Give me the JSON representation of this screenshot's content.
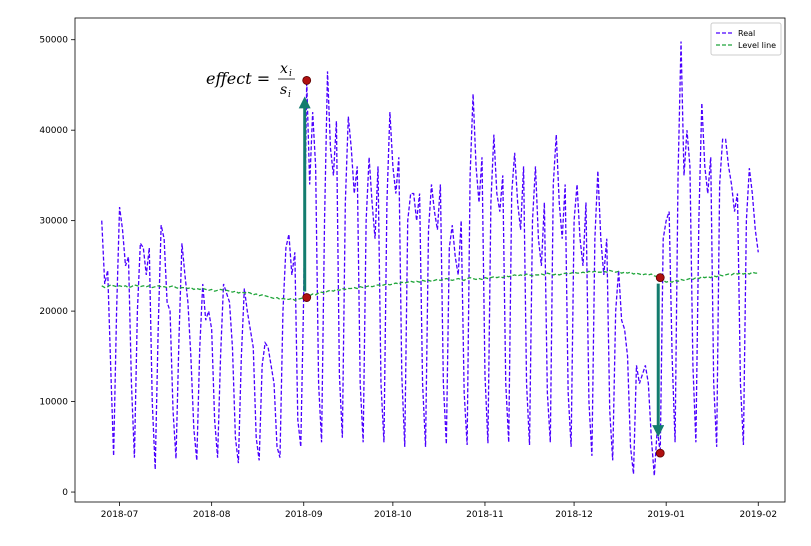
{
  "chart_data": {
    "type": "line",
    "x": [
      "2018-06-25",
      "2018-06-26",
      "2018-06-27",
      "2018-06-28",
      "2018-06-29",
      "2018-06-30",
      "2018-07-01",
      "2018-07-02",
      "2018-07-03",
      "2018-07-04",
      "2018-07-05",
      "2018-07-06",
      "2018-07-07",
      "2018-07-08",
      "2018-07-09",
      "2018-07-10",
      "2018-07-11",
      "2018-07-12",
      "2018-07-13",
      "2018-07-14",
      "2018-07-15",
      "2018-07-16",
      "2018-07-17",
      "2018-07-18",
      "2018-07-19",
      "2018-07-20",
      "2018-07-21",
      "2018-07-22",
      "2018-07-23",
      "2018-07-24",
      "2018-07-25",
      "2018-07-26",
      "2018-07-27",
      "2018-07-28",
      "2018-07-29",
      "2018-07-30",
      "2018-07-31",
      "2018-08-01",
      "2018-08-02",
      "2018-08-03",
      "2018-08-04",
      "2018-08-05",
      "2018-08-06",
      "2018-08-07",
      "2018-08-08",
      "2018-08-09",
      "2018-08-10",
      "2018-08-11",
      "2018-08-12",
      "2018-08-13",
      "2018-08-14",
      "2018-08-15",
      "2018-08-16",
      "2018-08-17",
      "2018-08-18",
      "2018-08-19",
      "2018-08-20",
      "2018-08-21",
      "2018-08-22",
      "2018-08-23",
      "2018-08-24",
      "2018-08-25",
      "2018-08-26",
      "2018-08-27",
      "2018-08-28",
      "2018-08-29",
      "2018-08-30",
      "2018-08-31",
      "2018-09-01",
      "2018-09-02",
      "2018-09-03",
      "2018-09-04",
      "2018-09-05",
      "2018-09-06",
      "2018-09-07",
      "2018-09-08",
      "2018-09-09",
      "2018-09-10",
      "2018-09-11",
      "2018-09-12",
      "2018-09-13",
      "2018-09-14",
      "2018-09-15",
      "2018-09-16",
      "2018-09-17",
      "2018-09-18",
      "2018-09-19",
      "2018-09-20",
      "2018-09-21",
      "2018-09-22",
      "2018-09-23",
      "2018-09-24",
      "2018-09-25",
      "2018-09-26",
      "2018-09-27",
      "2018-09-28",
      "2018-09-29",
      "2018-09-30",
      "2018-10-01",
      "2018-10-02",
      "2018-10-03",
      "2018-10-04",
      "2018-10-05",
      "2018-10-06",
      "2018-10-07",
      "2018-10-08",
      "2018-10-09",
      "2018-10-10",
      "2018-10-11",
      "2018-10-12",
      "2018-10-13",
      "2018-10-14",
      "2018-10-15",
      "2018-10-16",
      "2018-10-17",
      "2018-10-18",
      "2018-10-19",
      "2018-10-20",
      "2018-10-21",
      "2018-10-22",
      "2018-10-23",
      "2018-10-24",
      "2018-10-25",
      "2018-10-26",
      "2018-10-27",
      "2018-10-28",
      "2018-10-29",
      "2018-10-30",
      "2018-10-31",
      "2018-11-01",
      "2018-11-02",
      "2018-11-03",
      "2018-11-04",
      "2018-11-05",
      "2018-11-06",
      "2018-11-07",
      "2018-11-08",
      "2018-11-09",
      "2018-11-10",
      "2018-11-11",
      "2018-11-12",
      "2018-11-13",
      "2018-11-14",
      "2018-11-15",
      "2018-11-16",
      "2018-11-17",
      "2018-11-18",
      "2018-11-19",
      "2018-11-20",
      "2018-11-21",
      "2018-11-22",
      "2018-11-23",
      "2018-11-24",
      "2018-11-25",
      "2018-11-26",
      "2018-11-27",
      "2018-11-28",
      "2018-11-29",
      "2018-11-30",
      "2018-12-01",
      "2018-12-02",
      "2018-12-03",
      "2018-12-04",
      "2018-12-05",
      "2018-12-06",
      "2018-12-07",
      "2018-12-08",
      "2018-12-09",
      "2018-12-10",
      "2018-12-11",
      "2018-12-12",
      "2018-12-13",
      "2018-12-14",
      "2018-12-15",
      "2018-12-16",
      "2018-12-17",
      "2018-12-18",
      "2018-12-19",
      "2018-12-20",
      "2018-12-21",
      "2018-12-22",
      "2018-12-23",
      "2018-12-24",
      "2018-12-25",
      "2018-12-26",
      "2018-12-27",
      "2018-12-28",
      "2018-12-29",
      "2018-12-30",
      "2018-12-31",
      "2019-01-01",
      "2019-01-02",
      "2019-01-03",
      "2019-01-04",
      "2019-01-05",
      "2019-01-06",
      "2019-01-07",
      "2019-01-08",
      "2019-01-09",
      "2019-01-10",
      "2019-01-11",
      "2019-01-12",
      "2019-01-13",
      "2019-01-14",
      "2019-01-15",
      "2019-01-16",
      "2019-01-17",
      "2019-01-18",
      "2019-01-19",
      "2019-01-20",
      "2019-01-21",
      "2019-01-22",
      "2019-01-23",
      "2019-01-24",
      "2019-01-25",
      "2019-01-26",
      "2019-01-27",
      "2019-01-28",
      "2019-01-29",
      "2019-01-30",
      "2019-01-31",
      "2019-02-01"
    ],
    "series": [
      {
        "name": "Real",
        "color": "#4b00ff",
        "values": [
          30000,
          23000,
          24500,
          14000,
          4000,
          20000,
          31500,
          29000,
          25000,
          26000,
          12000,
          3800,
          20000,
          27500,
          27000,
          24000,
          27000,
          10000,
          2500,
          18000,
          29500,
          28000,
          21000,
          20000,
          9000,
          3700,
          17000,
          27500,
          24000,
          21000,
          15000,
          7000,
          3500,
          16000,
          23000,
          19000,
          20000,
          18000,
          8000,
          3800,
          15000,
          23000,
          22000,
          21000,
          16000,
          6000,
          3200,
          15000,
          22500,
          20000,
          18000,
          16000,
          6000,
          3500,
          14000,
          16500,
          16000,
          14000,
          12000,
          5000,
          3800,
          20000,
          27000,
          28500,
          24000,
          26500,
          8000,
          5000,
          22000,
          45500,
          34000,
          42000,
          36000,
          12000,
          5500,
          30000,
          46500,
          38000,
          35000,
          41000,
          13000,
          6000,
          32000,
          41500,
          38000,
          33000,
          36000,
          12000,
          5500,
          30000,
          37000,
          32000,
          28000,
          36000,
          12000,
          5500,
          32000,
          42000,
          36000,
          33000,
          37000,
          13000,
          5000,
          30000,
          33000,
          33000,
          30000,
          33000,
          12000,
          5000,
          29000,
          34000,
          31000,
          29000,
          34000,
          12000,
          5300,
          27000,
          29500,
          26000,
          24000,
          30000,
          11000,
          5200,
          35000,
          44000,
          36000,
          32000,
          37000,
          13000,
          5400,
          32000,
          39500,
          33000,
          31000,
          35000,
          12000,
          5500,
          33000,
          37500,
          32000,
          29000,
          36000,
          12000,
          5200,
          30000,
          36000,
          28000,
          25000,
          32000,
          11000,
          5500,
          34000,
          39500,
          32000,
          28000,
          34000,
          11000,
          5000,
          30000,
          34000,
          28000,
          25000,
          32000,
          10000,
          4000,
          28000,
          35500,
          28000,
          24000,
          28000,
          9000,
          3500,
          20000,
          24500,
          19000,
          18000,
          15000,
          5000,
          2000,
          14000,
          12000,
          13000,
          14000,
          12000,
          6000,
          1800,
          7000,
          4300,
          28000,
          30000,
          31000,
          15000,
          5500,
          35000,
          49800,
          35000,
          40000,
          36000,
          14000,
          5500,
          30000,
          43000,
          36000,
          33000,
          37000,
          12000,
          5000,
          34000,
          39000,
          39000,
          36000,
          34000,
          31000,
          33000,
          12000,
          5200,
          30000,
          35800,
          33000,
          29000,
          26500
        ]
      },
      {
        "name": "Level line",
        "color": "#1fa53a",
        "values": [
          22800,
          22600,
          22700,
          22900,
          22800,
          22700,
          22800,
          22700,
          22800,
          22600,
          22700,
          22900,
          22800,
          22700,
          22800,
          22700,
          22800,
          22600,
          22700,
          22800,
          22700,
          22700,
          22600,
          22700,
          22800,
          22600,
          22500,
          22600,
          22600,
          22500,
          22600,
          22400,
          22500,
          22400,
          22500,
          22400,
          22300,
          22400,
          22200,
          22300,
          22400,
          22300,
          22300,
          22200,
          22100,
          22200,
          22000,
          22100,
          22000,
          22100,
          22000,
          21800,
          21900,
          21700,
          21800,
          21700,
          21600,
          21500,
          21400,
          21500,
          21300,
          21400,
          21300,
          21300,
          21400,
          21200,
          21300,
          21400,
          21500,
          21500,
          21700,
          21900,
          21800,
          22000,
          22100,
          22000,
          22200,
          22300,
          22200,
          22400,
          22300,
          22500,
          22400,
          22500,
          22500,
          22600,
          22500,
          22700,
          22600,
          22700,
          22800,
          22700,
          22800,
          22900,
          22800,
          22900,
          23000,
          22900,
          23000,
          23100,
          23000,
          23200,
          23100,
          23200,
          23300,
          23200,
          23300,
          23200,
          23400,
          23300,
          23400,
          23300,
          23400,
          23500,
          23400,
          23500,
          23600,
          23500,
          23400,
          23500,
          23600,
          23500,
          23400,
          23600,
          23700,
          23600,
          23500,
          23600,
          23500,
          23700,
          23600,
          23700,
          23800,
          23700,
          23800,
          23700,
          23900,
          23800,
          23900,
          24000,
          23900,
          24000,
          23900,
          24100,
          24000,
          23900,
          24000,
          24000,
          24100,
          24000,
          24200,
          24100,
          24000,
          24100,
          24000,
          24100,
          24200,
          24100,
          24200,
          24300,
          24200,
          24200,
          24300,
          24200,
          24400,
          24300,
          24400,
          24300,
          24300,
          24400,
          24300,
          24500,
          24400,
          24300,
          24400,
          24200,
          24300,
          24200,
          24300,
          24100,
          24200,
          24100,
          24000,
          24100,
          24000,
          24100,
          23900,
          23800,
          23700,
          23400,
          23200,
          23300,
          23200,
          23400,
          23300,
          23500,
          23400,
          23500,
          23600,
          23500,
          23700,
          23600,
          23800,
          23700,
          23800,
          23700,
          23900,
          23800,
          24000,
          23900,
          24000,
          24100,
          24000,
          24200,
          24100,
          24200,
          24100,
          24200,
          24100,
          24300,
          24200,
          24200
        ]
      }
    ],
    "xlim": [
      "2018-06-16",
      "2019-02-10"
    ],
    "xticks": [
      {
        "value": "2018-07-01",
        "label": "2018-07"
      },
      {
        "value": "2018-08-01",
        "label": "2018-08"
      },
      {
        "value": "2018-09-01",
        "label": "2018-09"
      },
      {
        "value": "2018-10-01",
        "label": "2018-10"
      },
      {
        "value": "2018-11-01",
        "label": "2018-11"
      },
      {
        "value": "2018-12-01",
        "label": "2018-12"
      },
      {
        "value": "2019-01-01",
        "label": "2019-01"
      },
      {
        "value": "2019-02-01",
        "label": "2019-02"
      }
    ],
    "ylim": [
      -1100,
      52400
    ],
    "yticks": [
      0,
      10000,
      20000,
      30000,
      40000,
      50000
    ],
    "legend": "upper right",
    "line_style": "dashed",
    "highlight_x": [
      "2018-09-02",
      "2018-12-30"
    ],
    "highlight_color": "#b01010",
    "arrow_color": "#137c6e",
    "formula": {
      "lhs": "effect =",
      "numerator": "x",
      "numerator_sub": "i",
      "denominator": "s",
      "denominator_sub": "i"
    }
  }
}
